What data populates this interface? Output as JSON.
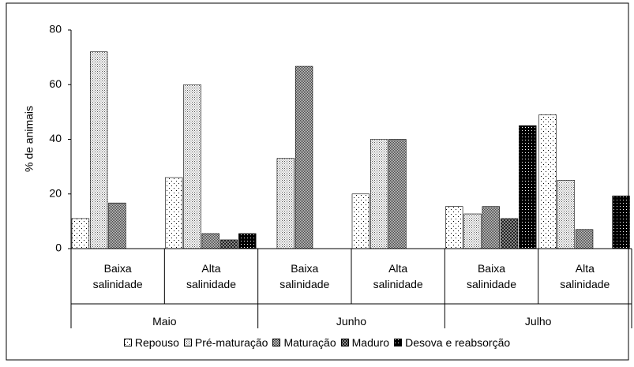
{
  "chart_data": {
    "type": "bar",
    "ylabel": "% de animais",
    "groups": [
      "Maio",
      "Junho",
      "Julho"
    ],
    "categories": [
      "Baixa salinidade",
      "Alta salinidade",
      "Baixa salinidade",
      "Alta salinidade",
      "Baixa salinidade",
      "Alta salinidade"
    ],
    "series": [
      {
        "name": "Repouso",
        "values": [
          11,
          26,
          0,
          20,
          15.4,
          49
        ]
      },
      {
        "name": "Pré-maturação",
        "values": [
          72,
          60,
          33,
          40,
          12.7,
          25
        ]
      },
      {
        "name": "Maturação",
        "values": [
          16.7,
          5.5,
          66.7,
          40,
          15.4,
          7
        ]
      },
      {
        "name": "Maduro",
        "values": [
          0,
          3.2,
          0,
          0,
          11,
          0
        ]
      },
      {
        "name": "Desova e reabsorção",
        "values": [
          0,
          5.5,
          0,
          0,
          45,
          19.3
        ]
      }
    ],
    "ylim": [
      0,
      80
    ],
    "yticks": [
      0,
      20,
      40,
      60,
      80
    ]
  }
}
